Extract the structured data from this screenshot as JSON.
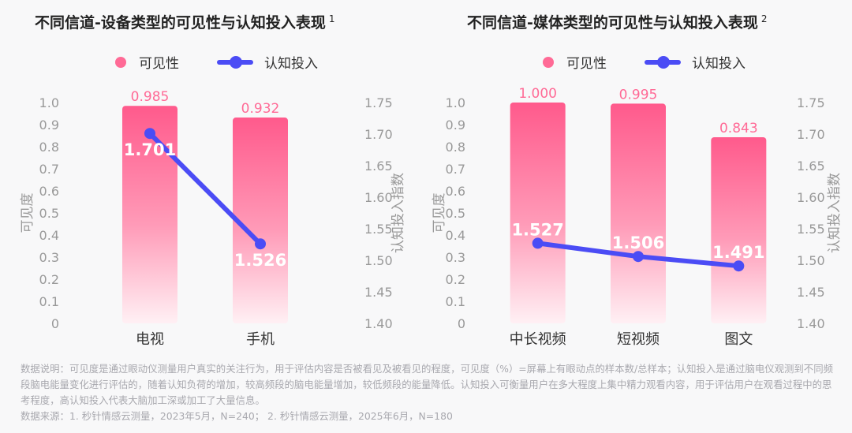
{
  "footer": {
    "note": "数据说明：可见度是通过眼动仪测量用户真实的关注行为，用于评估内容是否被看见及被看见的程度，可见度（%）=屏幕上有眼动点的样本数/总样本；认知投入是通过脑电仪观测到不同频段脑电能量变化进行评估的，随着认知负荷的增加，较高频段的脑电能量增加，较低频段的能量降低。认知投入可衡量用户在多大程度上集中精力观看内容，用于评估用户在观看过程中的思考程度，高认知投入代表大脑加工深或加工了大量信息。",
    "source": "数据来源：1. 秒针情感云测量，2023年5月，N=240； 2. 秒针情感云测量，2025年6月，N=180"
  },
  "colors": {
    "bar_top": "#ff5a8c",
    "bar_bottom": "#fff0f4",
    "line": "#4b4cf5",
    "bar_label": "#ff6a96"
  },
  "chart_data": [
    {
      "type": "bar+line",
      "title": "不同信道-设备类型的可见性与认知投入表现",
      "footnote": "1",
      "legend": [
        "可见性",
        "认知投入"
      ],
      "ylabel": "可见度",
      "y2label": "认知投入指数",
      "categories": [
        "电视",
        "手机"
      ],
      "series": [
        {
          "name": "可见性",
          "type": "bar",
          "values": [
            0.985,
            0.932
          ],
          "labels": [
            "0.985",
            "0.932"
          ]
        },
        {
          "name": "认知投入",
          "type": "line",
          "values": [
            1.701,
            1.526
          ],
          "labels": [
            "1.701",
            "1.526"
          ]
        }
      ],
      "ylim": [
        0,
        1.0
      ],
      "yticks": [
        "0",
        "0.1",
        "0.2",
        "0.3",
        "0.4",
        "0.5",
        "0.6",
        "0.7",
        "0.8",
        "0.9",
        "1.0"
      ],
      "y2lim": [
        1.4,
        1.75
      ],
      "y2ticks": [
        "1.40",
        "1.45",
        "1.50",
        "1.55",
        "1.60",
        "1.65",
        "1.70",
        "1.75"
      ]
    },
    {
      "type": "bar+line",
      "title": "不同信道-媒体类型的可见性与认知投入表现",
      "footnote": "2",
      "legend": [
        "可见性",
        "认知投入"
      ],
      "ylabel": "可见度",
      "y2label": "认知投入指数",
      "categories": [
        "中长视频",
        "短视频",
        "图文"
      ],
      "series": [
        {
          "name": "可见性",
          "type": "bar",
          "values": [
            1.0,
            0.995,
            0.843
          ],
          "labels": [
            "1.000",
            "0.995",
            "0.843"
          ]
        },
        {
          "name": "认知投入",
          "type": "line",
          "values": [
            1.527,
            1.506,
            1.491
          ],
          "labels": [
            "1.527",
            "1.506",
            "1.491"
          ]
        }
      ],
      "ylim": [
        0,
        1.0
      ],
      "yticks": [
        "0",
        "0.1",
        "0.2",
        "0.3",
        "0.4",
        "0.5",
        "0.6",
        "0.7",
        "0.8",
        "0.9",
        "1.0"
      ],
      "y2lim": [
        1.4,
        1.75
      ],
      "y2ticks": [
        "1.40",
        "1.45",
        "1.50",
        "1.55",
        "1.60",
        "1.65",
        "1.70",
        "1.75"
      ]
    }
  ]
}
